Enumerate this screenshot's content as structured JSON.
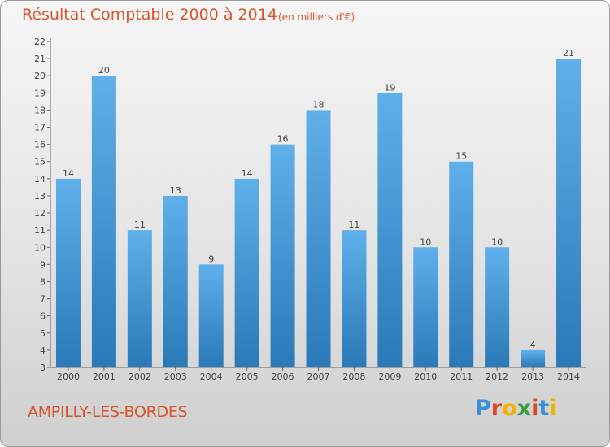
{
  "header": {
    "title": "Résultat Comptable 2000 à 2014",
    "subtitle": "(en milliers d'€)"
  },
  "footer": {
    "town": "AMPILLY-LES-BORDES",
    "brand": "Proxiti"
  },
  "colors": {
    "title": "#d9532b",
    "bar_light": "#5fb0ea",
    "bar_dark": "#2a79b8",
    "logo_letters": [
      "#3b8fd6",
      "#e0452b",
      "#f0b400",
      "#3a9e3a",
      "#e0452b",
      "#3b8fd6",
      "#f0b400"
    ]
  },
  "chart_data": {
    "type": "bar",
    "categories": [
      "2000",
      "2001",
      "2002",
      "2003",
      "2004",
      "2005",
      "2006",
      "2007",
      "2008",
      "2009",
      "2010",
      "2011",
      "2012",
      "2013",
      "2014"
    ],
    "values": [
      14,
      20,
      11,
      13,
      9,
      14,
      16,
      18,
      11,
      19,
      10,
      15,
      10,
      4,
      21
    ],
    "data_labels": [
      "14",
      "20",
      "11",
      "13",
      "9",
      "14",
      "16",
      "18",
      "11",
      "19",
      "10",
      "15",
      "10",
      "4",
      "21"
    ],
    "title": "Résultat Comptable 2000 à 2014",
    "subtitle": "(en milliers d'€)",
    "xlabel": "",
    "ylabel": "",
    "ylim": [
      3,
      22
    ],
    "yticks": [
      3,
      4,
      5,
      6,
      7,
      8,
      9,
      10,
      11,
      12,
      13,
      14,
      15,
      16,
      17,
      18,
      19,
      20,
      21,
      22
    ],
    "grid": false,
    "legend": "none"
  }
}
